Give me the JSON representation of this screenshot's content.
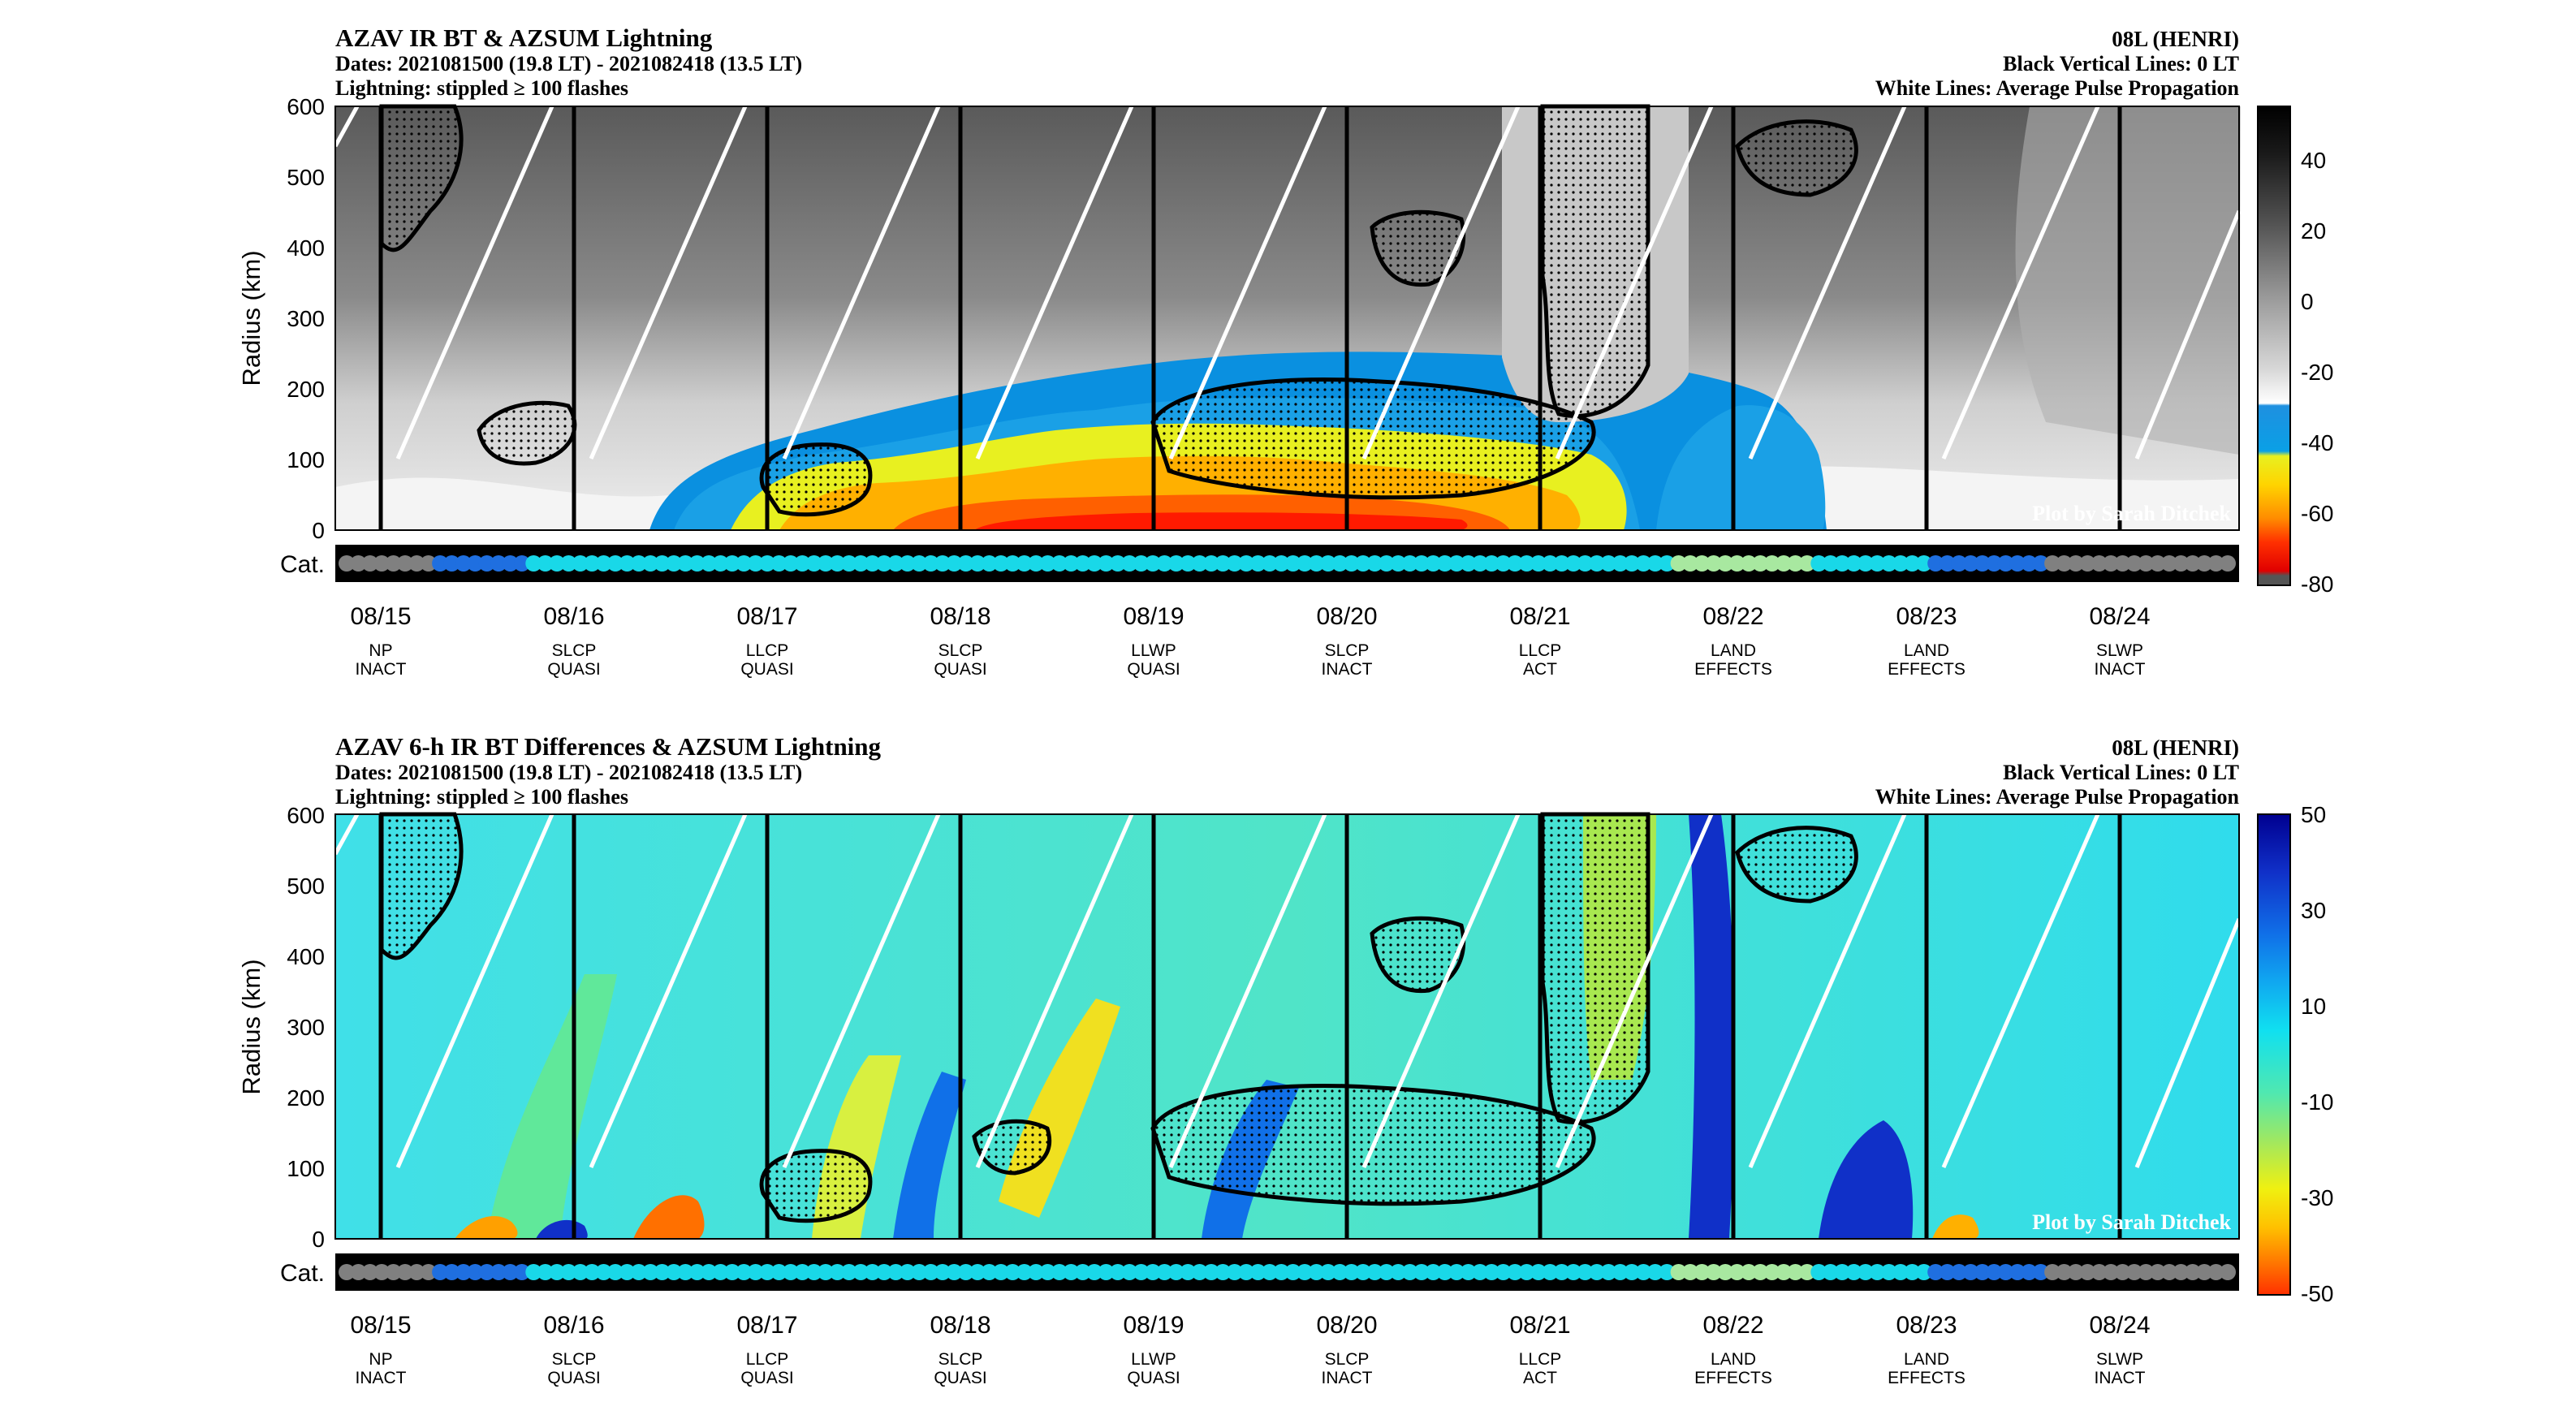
{
  "panels": [
    {
      "title": "AZAV IR BT & AZSUM Lightning",
      "dates_line": "Dates: 2021081500 (19.8 LT) - 2021082418 (13.5 LT)",
      "lightning_line": "Lightning: stippled ≥ 100 flashes",
      "storm": "08L (HENRI)",
      "vlines_note": "Black Vertical Lines: 0 LT",
      "wlines_note": "White Lines: Average Pulse Propagation",
      "credit": "Plot by Sarah Ditchek",
      "ylabel": "Radius (km)",
      "cat_label": "Cat.",
      "colorbar": {
        "ticks": [
          "40",
          "20",
          "0",
          "-20",
          "-40",
          "-60",
          "-80"
        ]
      }
    },
    {
      "title": "AZAV 6-h IR BT Differences & AZSUM Lightning",
      "dates_line": "Dates: 2021081500 (19.8 LT) - 2021082418 (13.5 LT)",
      "lightning_line": "Lightning: stippled ≥ 100 flashes",
      "storm": "08L (HENRI)",
      "vlines_note": "Black Vertical Lines: 0 LT",
      "wlines_note": "White Lines: Average Pulse Propagation",
      "credit": "Plot by Sarah Ditchek",
      "ylabel": "Radius (km)",
      "cat_label": "Cat.",
      "colorbar": {
        "ticks": [
          "50",
          "30",
          "10",
          "-10",
          "-30",
          "-50"
        ]
      }
    }
  ],
  "chart_data": [
    {
      "type": "heatmap",
      "title": "AZAV IR BT & AZSUM Lightning",
      "ylabel": "Radius (km)",
      "ylim": [
        0,
        600
      ],
      "y_ticks": [
        "0",
        "100",
        "200",
        "300",
        "400",
        "500",
        "600"
      ],
      "x_ticks": [
        "08/15",
        "08/16",
        "08/17",
        "08/18",
        "08/19",
        "08/20",
        "08/21",
        "08/22",
        "08/23",
        "08/24"
      ],
      "x_categories": [
        {
          "label": "08/15",
          "phase": "NP",
          "state": "INACT"
        },
        {
          "label": "08/16",
          "phase": "SLCP",
          "state": "QUASI"
        },
        {
          "label": "08/17",
          "phase": "LLCP",
          "state": "QUASI"
        },
        {
          "label": "08/18",
          "phase": "SLCP",
          "state": "QUASI"
        },
        {
          "label": "08/19",
          "phase": "LLWP",
          "state": "QUASI"
        },
        {
          "label": "08/20",
          "phase": "SLCP",
          "state": "INACT"
        },
        {
          "label": "08/21",
          "phase": "LLCP",
          "state": "ACT"
        },
        {
          "label": "08/22",
          "phase": "LAND",
          "state": "EFFECTS"
        },
        {
          "label": "08/23",
          "phase": "LAND",
          "state": "EFFECTS"
        },
        {
          "label": "08/24",
          "phase": "SLWP",
          "state": "INACT"
        }
      ],
      "colorbar_range": [
        -80,
        55
      ],
      "colorbar_ticks": [
        40,
        20,
        0,
        -20,
        -40,
        -60,
        -80
      ]
    },
    {
      "type": "heatmap",
      "title": "AZAV 6-h IR BT Differences & AZSUM Lightning",
      "ylabel": "Radius (km)",
      "ylim": [
        0,
        600
      ],
      "y_ticks": [
        "0",
        "100",
        "200",
        "300",
        "400",
        "500",
        "600"
      ],
      "x_ticks": [
        "08/15",
        "08/16",
        "08/17",
        "08/18",
        "08/19",
        "08/20",
        "08/21",
        "08/22",
        "08/23",
        "08/24"
      ],
      "x_categories": [
        {
          "label": "08/15",
          "phase": "NP",
          "state": "INACT"
        },
        {
          "label": "08/16",
          "phase": "SLCP",
          "state": "QUASI"
        },
        {
          "label": "08/17",
          "phase": "LLCP",
          "state": "QUASI"
        },
        {
          "label": "08/18",
          "phase": "SLCP",
          "state": "QUASI"
        },
        {
          "label": "08/19",
          "phase": "LLWP",
          "state": "QUASI"
        },
        {
          "label": "08/20",
          "phase": "SLCP",
          "state": "INACT"
        },
        {
          "label": "08/21",
          "phase": "LLCP",
          "state": "ACT"
        },
        {
          "label": "08/22",
          "phase": "LAND",
          "state": "EFFECTS"
        },
        {
          "label": "08/23",
          "phase": "LAND",
          "state": "EFFECTS"
        },
        {
          "label": "08/24",
          "phase": "SLWP",
          "state": "INACT"
        }
      ],
      "colorbar_range": [
        -50,
        50
      ],
      "colorbar_ticks": [
        50,
        30,
        10,
        -10,
        -30,
        -50
      ]
    }
  ],
  "category_dots": [
    "g",
    "g",
    "g",
    "g",
    "g",
    "g",
    "g",
    "g",
    "b",
    "b",
    "b",
    "b",
    "b",
    "b",
    "b",
    "b",
    "c",
    "c",
    "c",
    "c",
    "c",
    "c",
    "c",
    "c",
    "c",
    "c",
    "c",
    "c",
    "c",
    "c",
    "c",
    "c",
    "c",
    "c",
    "c",
    "c",
    "c",
    "c",
    "c",
    "c",
    "c",
    "c",
    "c",
    "c",
    "c",
    "c",
    "c",
    "c",
    "c",
    "c",
    "c",
    "c",
    "c",
    "c",
    "c",
    "c",
    "c",
    "c",
    "c",
    "c",
    "c",
    "c",
    "c",
    "c",
    "c",
    "c",
    "c",
    "c",
    "c",
    "c",
    "c",
    "c",
    "c",
    "c",
    "c",
    "c",
    "c",
    "c",
    "c",
    "c",
    "c",
    "c",
    "c",
    "c",
    "c",
    "c",
    "c",
    "c",
    "c",
    "c",
    "c",
    "c",
    "c",
    "c",
    "c",
    "c",
    "c",
    "c",
    "c",
    "c",
    "c",
    "c",
    "c",
    "c",
    "c",
    "c",
    "c",
    "c",
    "c",
    "c",
    "c",
    "c",
    "c",
    "c",
    "l",
    "l",
    "l",
    "l",
    "l",
    "l",
    "l",
    "l",
    "l",
    "l",
    "l",
    "l",
    "c",
    "c",
    "c",
    "c",
    "c",
    "c",
    "c",
    "c",
    "c",
    "c",
    "b",
    "b",
    "b",
    "b",
    "b",
    "b",
    "b",
    "b",
    "b",
    "b",
    "g",
    "g",
    "g",
    "g",
    "g",
    "g",
    "g",
    "g",
    "g",
    "g",
    "g",
    "g",
    "g",
    "g",
    "g",
    "g"
  ],
  "dot_colors": {
    "g": "#808080",
    "b": "#1f6fe0",
    "c": "#19d8e8",
    "l": "#a8e8a0"
  }
}
